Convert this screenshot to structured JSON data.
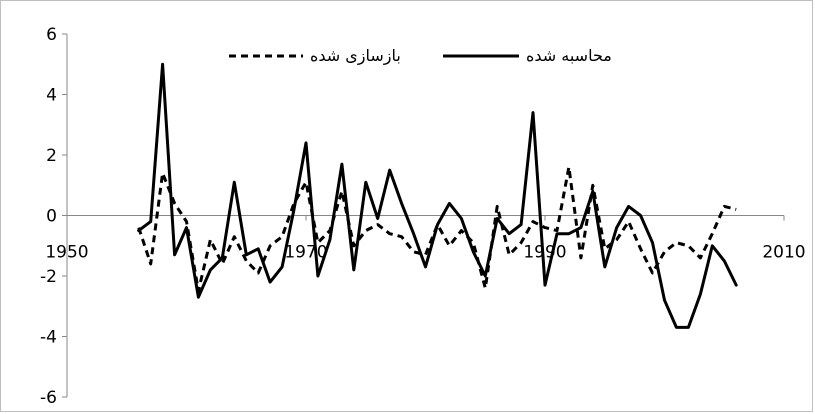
{
  "chart_data": {
    "type": "line",
    "title": "",
    "xlabel": "",
    "ylabel": "",
    "xlim": [
      1950,
      2010
    ],
    "ylim": [
      -6,
      6
    ],
    "x_ticks": [
      1950,
      1970,
      1990,
      2010
    ],
    "y_ticks": [
      -6,
      -4,
      -2,
      0,
      2,
      4,
      6
    ],
    "x_tick_labels": [
      "1950",
      "1970",
      "1990",
      "2010"
    ],
    "y_tick_labels": [
      "-6",
      "-4",
      "-2",
      "0",
      "2",
      "4",
      "6"
    ],
    "legend_position": "top",
    "series": [
      {
        "name": "محاسبه شده",
        "style": "solid",
        "color": "#000000",
        "x": [
          1956,
          1957,
          1958,
          1959,
          1960,
          1961,
          1962,
          1963,
          1964,
          1965,
          1966,
          1967,
          1968,
          1969,
          1970,
          1971,
          1972,
          1973,
          1974,
          1975,
          1976,
          1977,
          1978,
          1979,
          1980,
          1981,
          1982,
          1983,
          1984,
          1985,
          1986,
          1987,
          1988,
          1989,
          1990,
          1991,
          1992,
          1993,
          1994,
          1995,
          1996,
          1997,
          1998,
          1999,
          2000,
          2001,
          2002,
          2003,
          2004,
          2005,
          2006
        ],
        "y": [
          -0.5,
          -0.2,
          5.0,
          -1.3,
          -0.4,
          -2.7,
          -1.8,
          -1.4,
          1.1,
          -1.3,
          -1.1,
          -2.2,
          -1.7,
          0.2,
          2.4,
          -2.0,
          -0.8,
          1.7,
          -1.8,
          1.1,
          -0.1,
          1.5,
          0.4,
          -0.6,
          -1.7,
          -0.3,
          0.4,
          -0.1,
          -1.2,
          -2.0,
          -0.1,
          -0.6,
          -0.3,
          3.4,
          -2.3,
          -0.6,
          -0.6,
          -0.4,
          0.8,
          -1.7,
          -0.4,
          0.3,
          0.0,
          -0.9,
          -2.8,
          -3.7,
          -3.7,
          -2.6,
          -1.0,
          -1.5,
          -2.3
        ]
      },
      {
        "name": "بازسازی شده",
        "style": "dashed",
        "color": "#000000",
        "x": [
          1956,
          1957,
          1958,
          1959,
          1960,
          1961,
          1962,
          1963,
          1964,
          1965,
          1966,
          1967,
          1968,
          1969,
          1970,
          1971,
          1972,
          1973,
          1974,
          1975,
          1976,
          1977,
          1978,
          1979,
          1980,
          1981,
          1982,
          1983,
          1984,
          1985,
          1986,
          1987,
          1988,
          1989,
          1990,
          1991,
          1992,
          1993,
          1994,
          1995,
          1996,
          1997,
          1998,
          1999,
          2000,
          2001,
          2002,
          2003,
          2004,
          2005,
          2006
        ],
        "y": [
          -0.4,
          -1.6,
          1.4,
          0.4,
          -0.2,
          -2.5,
          -0.8,
          -1.6,
          -0.7,
          -1.5,
          -1.9,
          -1.0,
          -0.7,
          0.4,
          1.1,
          -0.9,
          -0.5,
          0.8,
          -1.0,
          -0.5,
          -0.3,
          -0.6,
          -0.7,
          -1.2,
          -1.3,
          -0.3,
          -1.0,
          -0.5,
          -0.9,
          -2.4,
          0.3,
          -1.3,
          -0.9,
          -0.2,
          -0.4,
          -0.5,
          1.6,
          -1.4,
          1.0,
          -1.1,
          -0.8,
          -0.2,
          -1.1,
          -1.9,
          -1.2,
          -0.9,
          -1.0,
          -1.4,
          -0.6,
          0.3,
          0.2
        ]
      }
    ]
  }
}
